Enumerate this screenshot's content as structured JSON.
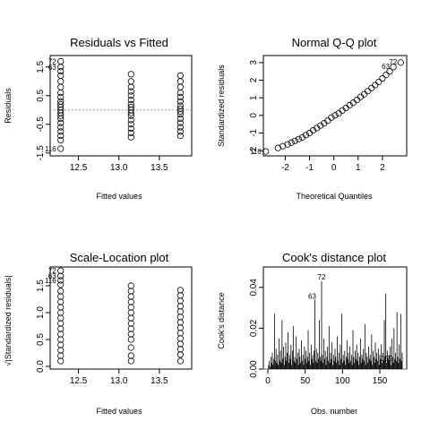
{
  "chart_data": [
    {
      "type": "scatter",
      "title": "Residuals vs Fitted",
      "xlabel": "Fitted values",
      "ylabel": "Residuals",
      "xlim": [
        12.15,
        13.9
      ],
      "ylim": [
        -1.6,
        1.9
      ],
      "xticks": [
        12.5,
        13.0,
        13.5
      ],
      "xtick_labels": [
        "12.5",
        "13.0",
        "13.5"
      ],
      "yticks": [
        -1.5,
        -0.5,
        0.5,
        1.5
      ],
      "ytick_labels": [
        "-1.5",
        "-0.5",
        "0.5",
        "1.5"
      ],
      "reference_line": {
        "y": 0,
        "style": "dotted",
        "color": "#999999"
      },
      "groups": [
        {
          "x": 12.28,
          "y": [
            1.7,
            1.5,
            1.35,
            1.2,
            1.0,
            0.8,
            0.6,
            0.45,
            0.3,
            0.2,
            0.1,
            0.0,
            -0.1,
            -0.2,
            -0.3,
            -0.45,
            -0.6,
            -0.75,
            -0.9,
            -1.05,
            -1.35
          ]
        },
        {
          "x": 13.15,
          "y": [
            1.25,
            1.0,
            0.8,
            0.65,
            0.5,
            0.35,
            0.2,
            0.1,
            0.0,
            -0.1,
            -0.2,
            -0.35,
            -0.5,
            -0.65,
            -0.8,
            -0.95
          ]
        },
        {
          "x": 13.76,
          "y": [
            1.2,
            1.0,
            0.8,
            0.6,
            0.45,
            0.3,
            0.15,
            0.05,
            -0.05,
            -0.15,
            -0.3,
            -0.45,
            -0.6,
            -0.75,
            -0.9
          ]
        }
      ],
      "point_labels": [
        {
          "text": "72",
          "x": 12.28,
          "y": 1.7
        },
        {
          "text": "63",
          "x": 12.28,
          "y": 1.5
        },
        {
          "text": "116",
          "x": 12.28,
          "y": -1.35
        }
      ]
    },
    {
      "type": "scatter",
      "title": "Normal Q-Q plot",
      "xlabel": "Theoretical Quantiles",
      "ylabel": "Standardized residuals",
      "xlim": [
        -2.9,
        3.0
      ],
      "ylim": [
        -2.3,
        3.4
      ],
      "xticks": [
        -2,
        -1,
        0,
        1,
        2
      ],
      "xtick_labels": [
        "-2",
        "-1",
        "0",
        "1",
        "2"
      ],
      "yticks": [
        -2,
        -1,
        0,
        1,
        2,
        3
      ],
      "ytick_labels": [
        "-2",
        "-1",
        "0",
        "1",
        "2",
        "3"
      ],
      "points": [
        [
          -2.8,
          -2.05
        ],
        [
          -2.3,
          -1.85
        ],
        [
          -2.1,
          -1.75
        ],
        [
          -1.9,
          -1.65
        ],
        [
          -1.75,
          -1.55
        ],
        [
          -1.6,
          -1.45
        ],
        [
          -1.45,
          -1.35
        ],
        [
          -1.3,
          -1.25
        ],
        [
          -1.15,
          -1.12
        ],
        [
          -1.0,
          -1.0
        ],
        [
          -0.85,
          -0.85
        ],
        [
          -0.7,
          -0.72
        ],
        [
          -0.55,
          -0.58
        ],
        [
          -0.4,
          -0.45
        ],
        [
          -0.25,
          -0.3
        ],
        [
          -0.1,
          -0.12
        ],
        [
          0.05,
          0.0
        ],
        [
          0.2,
          0.12
        ],
        [
          0.35,
          0.28
        ],
        [
          0.5,
          0.42
        ],
        [
          0.65,
          0.58
        ],
        [
          0.8,
          0.72
        ],
        [
          0.95,
          0.88
        ],
        [
          1.1,
          1.05
        ],
        [
          1.25,
          1.2
        ],
        [
          1.4,
          1.38
        ],
        [
          1.55,
          1.55
        ],
        [
          1.7,
          1.72
        ],
        [
          1.85,
          1.9
        ],
        [
          2.0,
          2.1
        ],
        [
          2.15,
          2.3
        ],
        [
          2.3,
          2.5
        ],
        [
          2.45,
          2.75
        ],
        [
          2.75,
          3.0
        ]
      ],
      "point_labels": [
        {
          "text": "72",
          "x": 2.75,
          "y": 3.0
        },
        {
          "text": "63",
          "x": 2.45,
          "y": 2.75
        },
        {
          "text": "116",
          "x": -2.8,
          "y": -2.05
        }
      ]
    },
    {
      "type": "scatter",
      "title": "Scale-Location plot",
      "xlabel": "Fitted values",
      "ylabel": "√|Standardized residuals|",
      "xlim": [
        12.15,
        13.9
      ],
      "ylim": [
        -0.05,
        1.85
      ],
      "xticks": [
        12.5,
        13.0,
        13.5
      ],
      "xtick_labels": [
        "12.5",
        "13.0",
        "13.5"
      ],
      "yticks": [
        0.0,
        0.5,
        1.0,
        1.5
      ],
      "ytick_labels": [
        "0.0",
        "0.5",
        "1.0",
        "1.5"
      ],
      "groups": [
        {
          "x": 12.28,
          "y": [
            1.78,
            1.68,
            1.6,
            1.52,
            1.4,
            1.3,
            1.2,
            1.1,
            1.0,
            0.9,
            0.8,
            0.7,
            0.6,
            0.5,
            0.4,
            0.3,
            0.2,
            0.1
          ]
        },
        {
          "x": 13.15,
          "y": [
            1.5,
            1.4,
            1.3,
            1.2,
            1.1,
            1.0,
            0.9,
            0.8,
            0.7,
            0.6,
            0.5,
            0.35,
            0.2,
            0.1
          ]
        },
        {
          "x": 13.76,
          "y": [
            1.42,
            1.32,
            1.22,
            1.12,
            1.02,
            0.92,
            0.82,
            0.72,
            0.62,
            0.52,
            0.42,
            0.32,
            0.22,
            0.1
          ]
        }
      ],
      "point_labels": [
        {
          "text": "72",
          "x": 12.28,
          "y": 1.78
        },
        {
          "text": "63",
          "x": 12.28,
          "y": 1.68
        },
        {
          "text": "116",
          "x": 12.28,
          "y": 1.6
        }
      ]
    },
    {
      "type": "bar",
      "title": "Cook's distance plot",
      "xlabel": "Obs. number",
      "ylabel": "Cook's distance",
      "xlim": [
        -6,
        186
      ],
      "ylim": [
        0,
        0.05
      ],
      "xticks": [
        0,
        50,
        100,
        150
      ],
      "xtick_labels": [
        "0",
        "50",
        "100",
        "150"
      ],
      "yticks": [
        0.0,
        0.02,
        0.04
      ],
      "ytick_labels": [
        "0.00",
        "0.02",
        "0.04"
      ],
      "values": [
        0.002,
        0.004,
        0.001,
        0.006,
        0.003,
        0.008,
        0.002,
        0.005,
        0.027,
        0.004,
        0.01,
        0.003,
        0.007,
        0.002,
        0.015,
        0.004,
        0.009,
        0.003,
        0.024,
        0.005,
        0.011,
        0.002,
        0.006,
        0.013,
        0.004,
        0.008,
        0.018,
        0.003,
        0.007,
        0.005,
        0.012,
        0.002,
        0.009,
        0.021,
        0.004,
        0.006,
        0.003,
        0.016,
        0.005,
        0.008,
        0.002,
        0.01,
        0.006,
        0.003,
        0.014,
        0.004,
        0.007,
        0.002,
        0.011,
        0.005,
        0.009,
        0.003,
        0.006,
        0.019,
        0.004,
        0.008,
        0.002,
        0.012,
        0.005,
        0.007,
        0.003,
        0.009,
        0.034,
        0.004,
        0.01,
        0.003,
        0.008,
        0.005,
        0.024,
        0.006,
        0.004,
        0.043,
        0.007,
        0.003,
        0.015,
        0.005,
        0.009,
        0.002,
        0.006,
        0.011,
        0.004,
        0.021,
        0.003,
        0.008,
        0.005,
        0.013,
        0.002,
        0.007,
        0.004,
        0.01,
        0.006,
        0.003,
        0.016,
        0.004,
        0.008,
        0.002,
        0.012,
        0.005,
        0.027,
        0.003,
        0.007,
        0.004,
        0.009,
        0.002,
        0.006,
        0.014,
        0.005,
        0.008,
        0.003,
        0.011,
        0.004,
        0.007,
        0.002,
        0.019,
        0.006,
        0.003,
        0.009,
        0.005,
        0.012,
        0.004,
        0.008,
        0.002,
        0.006,
        0.015,
        0.003,
        0.007,
        0.005,
        0.01,
        0.004,
        0.022,
        0.002,
        0.008,
        0.006,
        0.003,
        0.011,
        0.005,
        0.007,
        0.004,
        0.017,
        0.002,
        0.009,
        0.006,
        0.003,
        0.013,
        0.005,
        0.008,
        0.004,
        0.01,
        0.002,
        0.007,
        0.005,
        0.012,
        0.003,
        0.008,
        0.004,
        0.024,
        0.006,
        0.037,
        0.003,
        0.009,
        0.005,
        0.007,
        0.004,
        0.011,
        0.002,
        0.015,
        0.006,
        0.003,
        0.02,
        0.005,
        0.008,
        0.004,
        0.028,
        0.006,
        0.003,
        0.012,
        0.005,
        0.027,
        0.004,
        0.008
      ],
      "point_labels": [
        {
          "text": "63",
          "obs": 63
        },
        {
          "text": "72",
          "obs": 72
        },
        {
          "text": "159",
          "obs": 159
        }
      ]
    }
  ]
}
